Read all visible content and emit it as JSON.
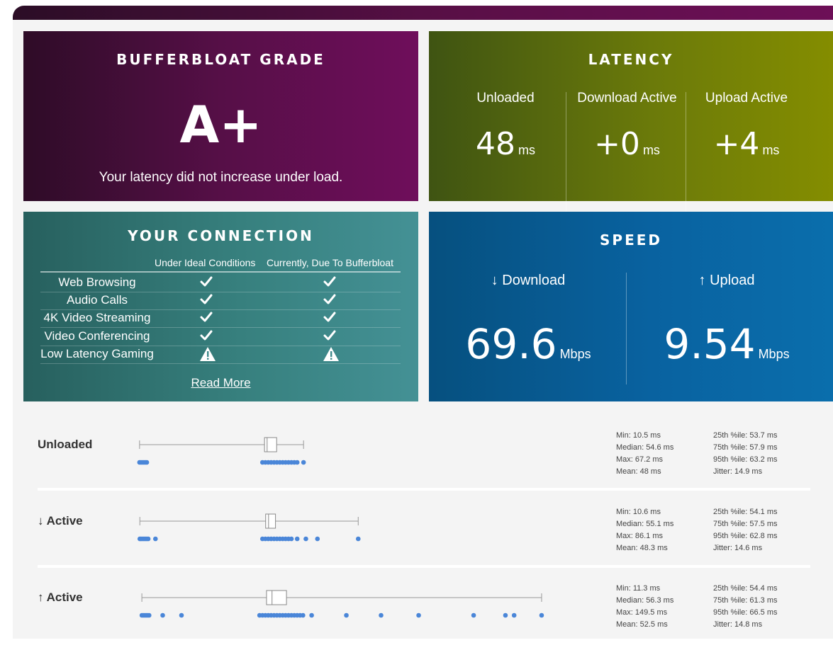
{
  "grade": {
    "title": "BUFFERBLOAT GRADE",
    "letter": "A+",
    "message": "Your latency did not increase under load."
  },
  "latency": {
    "title": "LATENCY",
    "columns": [
      {
        "label": "Unloaded",
        "value": "48",
        "unit": "ms"
      },
      {
        "label": "Download Active",
        "value": "+0",
        "unit": "ms"
      },
      {
        "label": "Upload Active",
        "value": "+4",
        "unit": "ms"
      }
    ]
  },
  "connection": {
    "title": "YOUR CONNECTION",
    "headers": [
      "Under Ideal Conditions",
      "Currently, Due To Bufferbloat"
    ],
    "rows": [
      {
        "service": "Web Browsing",
        "ideal": "check",
        "current": "check"
      },
      {
        "service": "Audio Calls",
        "ideal": "check",
        "current": "check"
      },
      {
        "service": "4K Video Streaming",
        "ideal": "check",
        "current": "check"
      },
      {
        "service": "Video Conferencing",
        "ideal": "check",
        "current": "check"
      },
      {
        "service": "Low Latency Gaming",
        "ideal": "warning",
        "current": "warning"
      }
    ],
    "read_more": "Read More"
  },
  "speed": {
    "title": "SPEED",
    "download": {
      "label": "↓ Download",
      "value": "69.6",
      "unit": "Mbps"
    },
    "upload": {
      "label": "↑ Upload",
      "value": "9.54",
      "unit": "Mbps"
    }
  },
  "distributions": {
    "axis_ms": [
      0,
      150
    ],
    "rows": [
      {
        "label": "Unloaded",
        "min": 10.5,
        "q1": 53.7,
        "median": 54.6,
        "q3": 57.9,
        "max": 67.2,
        "points": [
          10.5,
          11,
          11.5,
          12,
          12.5,
          13,
          53,
          54,
          55,
          56,
          57,
          58,
          59,
          60,
          61,
          62,
          63,
          64,
          65,
          67.2
        ],
        "stats_left": [
          "Min: 10.5 ms",
          "Median: 54.6 ms",
          "Max: 67.2 ms",
          "Mean: 48 ms"
        ],
        "stats_right": [
          "25th %ile: 53.7 ms",
          "75th %ile: 57.9 ms",
          "95th %ile: 63.2 ms",
          "Jitter: 14.9 ms"
        ]
      },
      {
        "label": "↓ Active",
        "min": 10.6,
        "q1": 54.1,
        "median": 55.1,
        "q3": 57.5,
        "max": 86.1,
        "points": [
          10.6,
          11,
          11.5,
          12,
          12.5,
          13,
          13.5,
          16,
          53,
          54,
          55,
          56,
          57,
          58,
          59,
          60,
          61,
          62,
          63,
          65,
          68,
          72,
          86.1
        ],
        "stats_left": [
          "Min: 10.6 ms",
          "Median: 55.1 ms",
          "Max: 86.1 ms",
          "Mean: 48.3 ms"
        ],
        "stats_right": [
          "25th %ile: 54.1 ms",
          "75th %ile: 57.5 ms",
          "95th %ile: 62.8 ms",
          "Jitter: 14.6 ms"
        ]
      },
      {
        "label": "↑ Active",
        "min": 11.3,
        "q1": 54.4,
        "median": 56.3,
        "q3": 61.3,
        "max": 149.5,
        "points": [
          11.3,
          11.8,
          12.3,
          12.8,
          13.3,
          13.8,
          18.5,
          25,
          52,
          53,
          54,
          55,
          56,
          57,
          58,
          59,
          60,
          61,
          62,
          63,
          64,
          65,
          66,
          67,
          70,
          82,
          94,
          107,
          126,
          137,
          140,
          149.5
        ],
        "stats_left": [
          "Min: 11.3 ms",
          "Median: 56.3 ms",
          "Max: 149.5 ms",
          "Mean: 52.5 ms"
        ],
        "stats_right": [
          "25th %ile: 54.4 ms",
          "75th %ile: 61.3 ms",
          "95th %ile: 66.5 ms",
          "Jitter: 14.8 ms"
        ]
      }
    ]
  },
  "colors": {
    "dot": "#4a86d8",
    "box_stroke": "#888888"
  },
  "icons": {
    "check": "check-icon",
    "warning": "warning-triangle-icon"
  }
}
